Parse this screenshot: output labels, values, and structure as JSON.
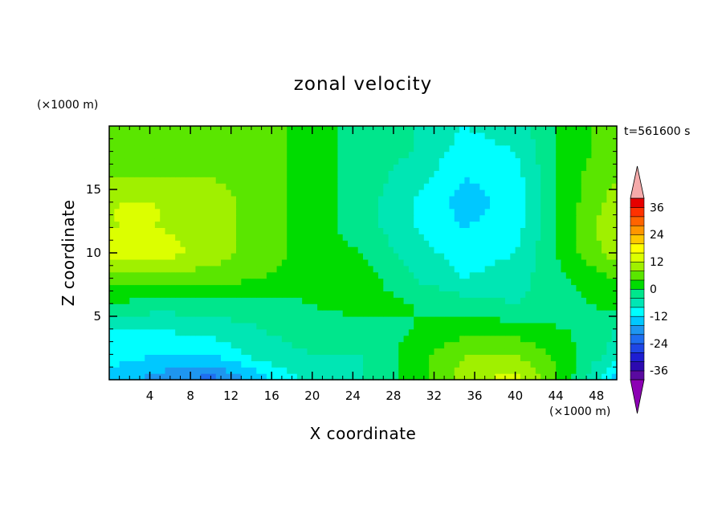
{
  "chart_data": {
    "type": "heatmap",
    "title": "zonal velocity",
    "xlabel": "X coordinate",
    "ylabel": "Z coordinate",
    "x_unit_label": "(×1000 m)",
    "y_unit_label": "(×1000 m)",
    "time_label": "t=561600 s",
    "xlim": [
      0,
      50
    ],
    "ylim": [
      0,
      20
    ],
    "x_ticks": [
      4,
      8,
      12,
      16,
      20,
      24,
      28,
      32,
      36,
      40,
      44,
      48
    ],
    "y_ticks": [
      5,
      10,
      15
    ],
    "colorbar": {
      "levels": [
        -40,
        -36,
        -32,
        -28,
        -24,
        -20,
        -16,
        -12,
        -8,
        -4,
        0,
        4,
        8,
        12,
        16,
        20,
        24,
        28,
        32,
        36,
        40
      ],
      "colors": [
        "#5a0aa0",
        "#2c0ab0",
        "#1e1ed2",
        "#1e46e6",
        "#1e6ef0",
        "#1e96f0",
        "#00c8ff",
        "#00ffff",
        "#00e6b4",
        "#00e68c",
        "#00dc00",
        "#5ae600",
        "#a0f000",
        "#dcff00",
        "#ffff00",
        "#ffc800",
        "#ff9600",
        "#ff6400",
        "#ff3200",
        "#e60000"
      ],
      "under_color": "#8c00b4",
      "over_color": "#f5aaaa",
      "tick_labels": [
        "36",
        "24",
        "12",
        "0",
        "-12",
        "-24",
        "-36"
      ]
    },
    "grid": {
      "x": [
        0,
        5,
        10,
        15,
        20,
        25,
        30,
        35,
        40,
        45,
        50
      ],
      "z": [
        0,
        2,
        4,
        6,
        8,
        10,
        12,
        14,
        16,
        18,
        20
      ],
      "values": [
        [
          -14,
          -18,
          -22,
          -14,
          -6,
          -4,
          2,
          10,
          14,
          2,
          -14
        ],
        [
          -10,
          -12,
          -12,
          -6,
          -4,
          -4,
          2,
          8,
          8,
          2,
          -6
        ],
        [
          -8,
          -8,
          -6,
          -4,
          -2,
          -2,
          0,
          2,
          2,
          0,
          -4
        ],
        [
          0,
          -2,
          -2,
          -2,
          0,
          2,
          0,
          -2,
          -4,
          -2,
          2
        ],
        [
          6,
          6,
          6,
          4,
          2,
          2,
          -4,
          -8,
          -6,
          0,
          4
        ],
        [
          14,
          14,
          10,
          6,
          2,
          0,
          -6,
          -10,
          -8,
          2,
          10
        ],
        [
          12,
          12,
          10,
          6,
          2,
          -2,
          -8,
          -12,
          -10,
          2,
          12
        ],
        [
          12,
          12,
          10,
          6,
          2,
          -2,
          -8,
          -14,
          -10,
          2,
          10
        ],
        [
          8,
          8,
          8,
          6,
          2,
          -2,
          -6,
          -12,
          -10,
          2,
          8
        ],
        [
          6,
          6,
          6,
          6,
          2,
          -2,
          -4,
          -10,
          -8,
          2,
          6
        ],
        [
          6,
          6,
          6,
          6,
          2,
          -2,
          -4,
          -8,
          -6,
          2,
          6
        ]
      ]
    }
  }
}
